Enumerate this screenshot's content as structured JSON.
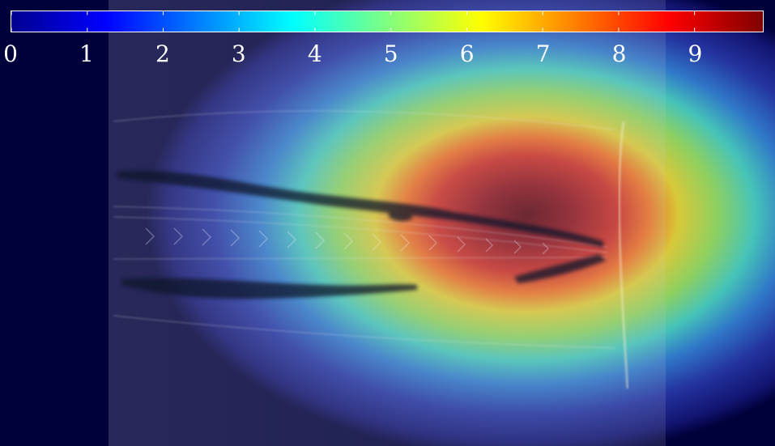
{
  "image": {
    "subject": "overlay-heatmap-on-microscopy",
    "colormap": "jet",
    "colors": {
      "background": "#00003a",
      "colorbar_border": "#ffffff",
      "tick_label_color": "#ffffff"
    }
  },
  "colorbar": {
    "min": 0,
    "max": 9.9,
    "tick_values": [
      0,
      1,
      2,
      3,
      4,
      5,
      6,
      7,
      8,
      9
    ],
    "tick_labels": [
      "0",
      "1",
      "2",
      "3",
      "4",
      "5",
      "6",
      "7",
      "8",
      "9"
    ]
  }
}
